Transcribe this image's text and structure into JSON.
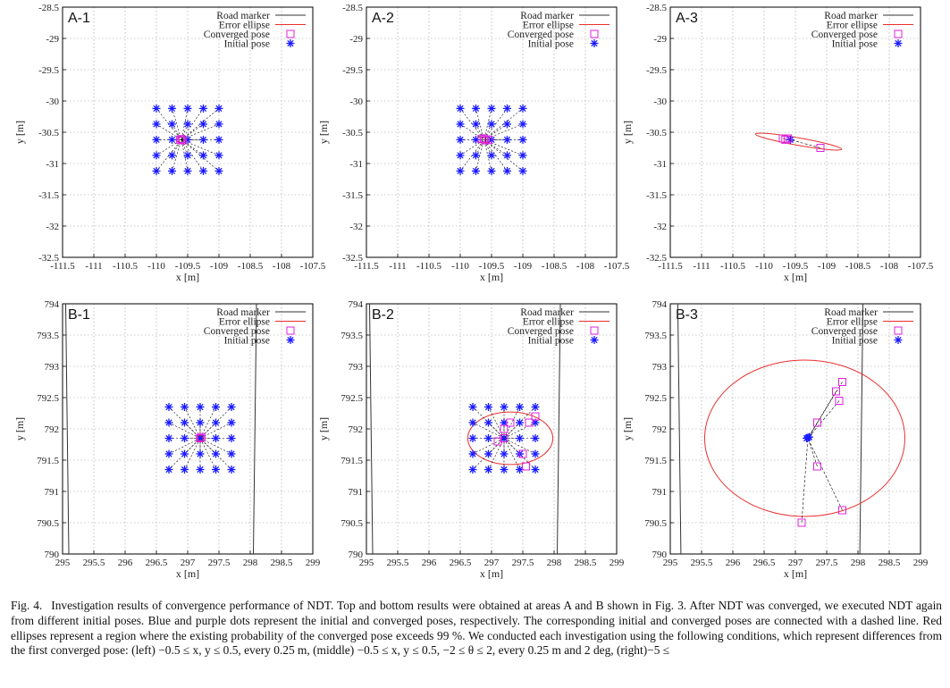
{
  "chart_data": [
    {
      "type": "scatter",
      "label": "A-1",
      "xlabel": "x [m]",
      "ylabel": "y [m]",
      "xlim": [
        -111.5,
        -107.5
      ],
      "ylim": [
        -32.5,
        -28.5
      ],
      "xticks": [
        "-111.5",
        "-111",
        "-110.5",
        "-110",
        "-109.5",
        "-109",
        "-108.5",
        "-108",
        "-107.5"
      ],
      "yticks": [
        "-32.5",
        "-32",
        "-31.5",
        "-31",
        "-30.5",
        "-30",
        "-29.5",
        "-29",
        "-28.5"
      ],
      "legend": [
        "Road marker",
        "Error ellipse",
        "Converged pose",
        "Initial pose"
      ],
      "center": [
        -109.6,
        -30.62
      ],
      "initial_grid": {
        "x0": -110.0,
        "step": 0.25,
        "n": 5,
        "y0": -30.12,
        "ystep": -0.25
      },
      "converged": [
        [
          -109.62,
          -30.62
        ],
        [
          -109.58,
          -30.63
        ],
        [
          -109.6,
          -30.61
        ]
      ],
      "ellipse": {
        "cx": -109.6,
        "cy": -30.62,
        "rx": 0.08,
        "ry": 0.05,
        "angle": 0
      },
      "road_markers": []
    },
    {
      "type": "scatter",
      "label": "A-2",
      "xlabel": "x [m]",
      "ylabel": "y [m]",
      "xlim": [
        -111.5,
        -107.5
      ],
      "ylim": [
        -32.5,
        -28.5
      ],
      "xticks": [
        "-111.5",
        "-111",
        "-110.5",
        "-110",
        "-109.5",
        "-109",
        "-108.5",
        "-108",
        "-107.5"
      ],
      "yticks": [
        "-32.5",
        "-32",
        "-31.5",
        "-31",
        "-30.5",
        "-30",
        "-29.5",
        "-29",
        "-28.5"
      ],
      "legend": [
        "Road marker",
        "Error ellipse",
        "Converged pose",
        "Initial pose"
      ],
      "center": [
        -109.62,
        -30.62
      ],
      "initial_grid": {
        "x0": -110.0,
        "step": 0.25,
        "n": 5,
        "y0": -30.12,
        "ystep": -0.25
      },
      "converged": [
        [
          -109.66,
          -30.61
        ],
        [
          -109.6,
          -30.63
        ],
        [
          -109.62,
          -30.6
        ],
        [
          -109.55,
          -30.62
        ]
      ],
      "ellipse": {
        "cx": -109.62,
        "cy": -30.62,
        "rx": 0.12,
        "ry": 0.05,
        "angle": 0
      },
      "road_markers": []
    },
    {
      "type": "scatter",
      "label": "A-3",
      "xlabel": "x [m]",
      "ylabel": "y [m]",
      "xlim": [
        -111.5,
        -107.5
      ],
      "ylim": [
        -32.5,
        -28.5
      ],
      "xticks": [
        "-111.5",
        "-111",
        "-110.5",
        "-110",
        "-109.5",
        "-109",
        "-108.5",
        "-108",
        "-107.5"
      ],
      "yticks": [
        "-32.5",
        "-32",
        "-31.5",
        "-31",
        "-30.5",
        "-30",
        "-29.5",
        "-29",
        "-28.5"
      ],
      "legend": [
        "Road marker",
        "Error ellipse",
        "Converged pose",
        "Initial pose"
      ],
      "center": [
        -109.58,
        -30.62
      ],
      "initial_grid": null,
      "initial_points": [
        [
          -109.58,
          -30.62
        ]
      ],
      "converged": [
        [
          -109.7,
          -30.6
        ],
        [
          -109.66,
          -30.62
        ],
        [
          -109.62,
          -30.6
        ],
        [
          -109.1,
          -30.75
        ]
      ],
      "ellipse": {
        "cx": -109.45,
        "cy": -30.65,
        "rx": 0.7,
        "ry": 0.06,
        "angle": 10
      },
      "road_markers": []
    },
    {
      "type": "scatter",
      "label": "B-1",
      "xlabel": "x [m]",
      "ylabel": "y [m]",
      "xlim": [
        295,
        299
      ],
      "ylim": [
        790,
        794
      ],
      "xticks": [
        "295",
        "295.5",
        "296",
        "296.5",
        "297",
        "297.5",
        "298",
        "298.5",
        "299"
      ],
      "yticks": [
        "790",
        "790.5",
        "791",
        "791.5",
        "792",
        "792.5",
        "793",
        "793.5",
        "794"
      ],
      "legend": [
        "Road marker",
        "Error ellipse",
        "Converged pose",
        "Initial pose"
      ],
      "center": [
        297.2,
        791.85
      ],
      "initial_grid": {
        "x0": 296.7,
        "step": 0.25,
        "n": 5,
        "y0": 792.35,
        "ystep": -0.25
      },
      "converged": [
        [
          297.2,
          791.85
        ],
        [
          297.22,
          791.87
        ]
      ],
      "ellipse": {
        "cx": 297.2,
        "cy": 791.85,
        "rx": 0.05,
        "ry": 0.05,
        "angle": 0
      },
      "road_markers": [
        [
          [
            295.05,
            794
          ],
          [
            295.1,
            790
          ]
        ],
        [
          [
            298.1,
            794
          ],
          [
            298.05,
            790
          ]
        ]
      ]
    },
    {
      "type": "scatter",
      "label": "B-2",
      "xlabel": "x [m]",
      "ylabel": "y [m]",
      "xlim": [
        295,
        299
      ],
      "ylim": [
        790,
        794
      ],
      "xticks": [
        "295",
        "295.5",
        "296",
        "296.5",
        "297",
        "297.5",
        "298",
        "298.5",
        "299"
      ],
      "yticks": [
        "790",
        "790.5",
        "791",
        "791.5",
        "792",
        "792.5",
        "793",
        "793.5",
        "794"
      ],
      "legend": [
        "Road marker",
        "Error ellipse",
        "Converged pose",
        "Initial pose"
      ],
      "center": [
        297.2,
        791.85
      ],
      "initial_grid": {
        "x0": 296.7,
        "step": 0.25,
        "n": 5,
        "y0": 792.35,
        "ystep": -0.25
      },
      "converged": [
        [
          297.3,
          792.1
        ],
        [
          297.6,
          792.1
        ],
        [
          297.7,
          792.2
        ],
        [
          297.2,
          792.0
        ],
        [
          297.1,
          791.8
        ],
        [
          297.5,
          791.6
        ],
        [
          297.55,
          791.4
        ],
        [
          297.2,
          791.85
        ]
      ],
      "ellipse": {
        "cx": 297.3,
        "cy": 791.85,
        "rx": 0.68,
        "ry": 0.42,
        "angle": 0
      },
      "road_markers": [
        [
          [
            295.05,
            794
          ],
          [
            295.1,
            790
          ]
        ],
        [
          [
            298.1,
            794
          ],
          [
            298.05,
            790
          ]
        ]
      ]
    },
    {
      "type": "scatter",
      "label": "B-3",
      "xlabel": "x [m]",
      "ylabel": "y [m]",
      "xlim": [
        295,
        299
      ],
      "ylim": [
        790,
        794
      ],
      "xticks": [
        "295",
        "295.5",
        "296",
        "296.5",
        "297",
        "297.5",
        "298",
        "298.5",
        "299"
      ],
      "yticks": [
        "790",
        "790.5",
        "791",
        "791.5",
        "792",
        "792.5",
        "793",
        "793.5",
        "794"
      ],
      "legend": [
        "Road marker",
        "Error ellipse",
        "Converged pose",
        "Initial pose"
      ],
      "center": [
        297.2,
        791.85
      ],
      "initial_grid": null,
      "initial_points": [
        [
          297.18,
          791.85
        ],
        [
          297.22,
          791.87
        ],
        [
          297.2,
          791.86
        ]
      ],
      "converged": [
        [
          297.75,
          792.75
        ],
        [
          297.65,
          792.6
        ],
        [
          297.7,
          792.45
        ],
        [
          297.35,
          792.1
        ],
        [
          297.35,
          791.4
        ],
        [
          297.75,
          790.7
        ],
        [
          297.1,
          790.5
        ]
      ],
      "ellipse": {
        "cx": 297.15,
        "cy": 791.85,
        "rx": 1.6,
        "ry": 1.25,
        "angle": 0
      },
      "road_markers": [
        [
          [
            295.12,
            794
          ],
          [
            295.17,
            790
          ]
        ],
        [
          [
            298.08,
            794
          ],
          [
            298.03,
            790
          ]
        ]
      ]
    }
  ],
  "caption": {
    "label": "Fig. 4.",
    "text": "Investigation results of convergence performance of NDT. Top and bottom results were obtained at areas A and B shown in Fig. 3. After NDT was converged, we executed NDT again from different initial poses. Blue and purple dots represent the initial and converged poses, respectively. The corresponding initial and converged poses are connected with a dashed line. Red ellipses represent a region where the existing probability of the converged pose exceeds 99 %. We conducted each investigation using the following conditions, which represent differences from the first converged pose: (left) −0.5 ≤ x, y ≤ 0.5, every 0.25 m, (middle) −0.5 ≤ x, y ≤ 0.5, −2 ≤ θ ≤ 2, every 0.25 m and 2 deg, (right)−5 ≤"
  },
  "colors": {
    "initial": "#1a1aff",
    "converged": "#e020e0",
    "ellipse": "#e83030",
    "road": "#333333",
    "grid": "#999999"
  }
}
